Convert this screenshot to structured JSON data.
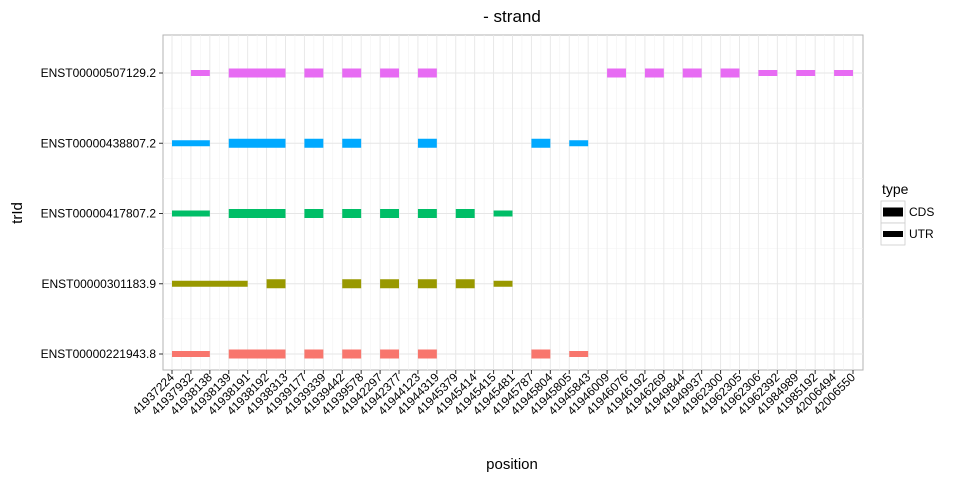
{
  "chart_data": {
    "type": "bar",
    "title": "- strand",
    "xlabel": "position",
    "ylabel": "trId",
    "x_ticks": [
      "41937224",
      "41937932",
      "41938138",
      "41938139",
      "41938191",
      "41938192",
      "41938313",
      "41939177",
      "41939339",
      "41939442",
      "41939578",
      "41942297",
      "41942377",
      "41944123",
      "41944319",
      "41945379",
      "41945414",
      "41945415",
      "41945481",
      "41945787",
      "41945804",
      "41945805",
      "41945843",
      "41946009",
      "41946076",
      "41946192",
      "41946269",
      "41949844",
      "41949937",
      "41962300",
      "41962305",
      "41962306",
      "41962392",
      "41984989",
      "41985192",
      "42006494",
      "42006550"
    ],
    "y_categories": [
      "ENST00000221943.8",
      "ENST00000301183.9",
      "ENST00000417807.2",
      "ENST00000438807.2",
      "ENST00000507129.2"
    ],
    "legend": {
      "title": "type",
      "position": "right",
      "entries": [
        "CDS",
        "UTR"
      ]
    },
    "grid": true,
    "series": [
      {
        "name": "ENST00000507129.2",
        "color": "#E76BF3",
        "segments": [
          {
            "start": "41937932",
            "end": "41938138",
            "type": "UTR"
          },
          {
            "start": "41938139",
            "end": "41938313",
            "type": "CDS"
          },
          {
            "start": "41939177",
            "end": "41939339",
            "type": "CDS"
          },
          {
            "start": "41939442",
            "end": "41939578",
            "type": "CDS"
          },
          {
            "start": "41942297",
            "end": "41942377",
            "type": "CDS"
          },
          {
            "start": "41944123",
            "end": "41944319",
            "type": "CDS"
          },
          {
            "start": "41946009",
            "end": "41946076",
            "type": "CDS"
          },
          {
            "start": "41946192",
            "end": "41946269",
            "type": "CDS"
          },
          {
            "start": "41949844",
            "end": "41949937",
            "type": "CDS"
          },
          {
            "start": "41962300",
            "end": "41962305",
            "type": "CDS"
          },
          {
            "start": "41962306",
            "end": "41962392",
            "type": "UTR"
          },
          {
            "start": "41984989",
            "end": "41985192",
            "type": "UTR"
          },
          {
            "start": "42006494",
            "end": "42006550",
            "type": "UTR"
          }
        ]
      },
      {
        "name": "ENST00000438807.2",
        "color": "#00A9FF",
        "segments": [
          {
            "start": "41937224",
            "end": "41938138",
            "type": "UTR"
          },
          {
            "start": "41938139",
            "end": "41938313",
            "type": "CDS"
          },
          {
            "start": "41939177",
            "end": "41939339",
            "type": "CDS"
          },
          {
            "start": "41939442",
            "end": "41939578",
            "type": "CDS"
          },
          {
            "start": "41944123",
            "end": "41944319",
            "type": "CDS"
          },
          {
            "start": "41945787",
            "end": "41945804",
            "type": "CDS"
          },
          {
            "start": "41945805",
            "end": "41945843",
            "type": "UTR"
          }
        ]
      },
      {
        "name": "ENST00000417807.2",
        "color": "#00BE67",
        "segments": [
          {
            "start": "41937224",
            "end": "41938138",
            "type": "UTR"
          },
          {
            "start": "41938139",
            "end": "41938313",
            "type": "CDS"
          },
          {
            "start": "41939177",
            "end": "41939339",
            "type": "CDS"
          },
          {
            "start": "41939442",
            "end": "41939578",
            "type": "CDS"
          },
          {
            "start": "41942297",
            "end": "41942377",
            "type": "CDS"
          },
          {
            "start": "41944123",
            "end": "41944319",
            "type": "CDS"
          },
          {
            "start": "41945379",
            "end": "41945414",
            "type": "CDS"
          },
          {
            "start": "41945415",
            "end": "41945481",
            "type": "UTR"
          }
        ]
      },
      {
        "name": "ENST00000301183.9",
        "color": "#999900",
        "segments": [
          {
            "start": "41937224",
            "end": "41938191",
            "type": "UTR"
          },
          {
            "start": "41938192",
            "end": "41938313",
            "type": "CDS"
          },
          {
            "start": "41939442",
            "end": "41939578",
            "type": "CDS"
          },
          {
            "start": "41942297",
            "end": "41942377",
            "type": "CDS"
          },
          {
            "start": "41944123",
            "end": "41944319",
            "type": "CDS"
          },
          {
            "start": "41945379",
            "end": "41945414",
            "type": "CDS"
          },
          {
            "start": "41945415",
            "end": "41945481",
            "type": "UTR"
          }
        ]
      },
      {
        "name": "ENST00000221943.8",
        "color": "#F8766D",
        "segments": [
          {
            "start": "41937224",
            "end": "41938138",
            "type": "UTR"
          },
          {
            "start": "41938139",
            "end": "41938313",
            "type": "CDS"
          },
          {
            "start": "41939177",
            "end": "41939339",
            "type": "CDS"
          },
          {
            "start": "41939442",
            "end": "41939578",
            "type": "CDS"
          },
          {
            "start": "41942297",
            "end": "41942377",
            "type": "CDS"
          },
          {
            "start": "41944123",
            "end": "41944319",
            "type": "CDS"
          },
          {
            "start": "41945787",
            "end": "41945804",
            "type": "CDS"
          },
          {
            "start": "41945805",
            "end": "41945843",
            "type": "UTR"
          }
        ]
      }
    ]
  }
}
